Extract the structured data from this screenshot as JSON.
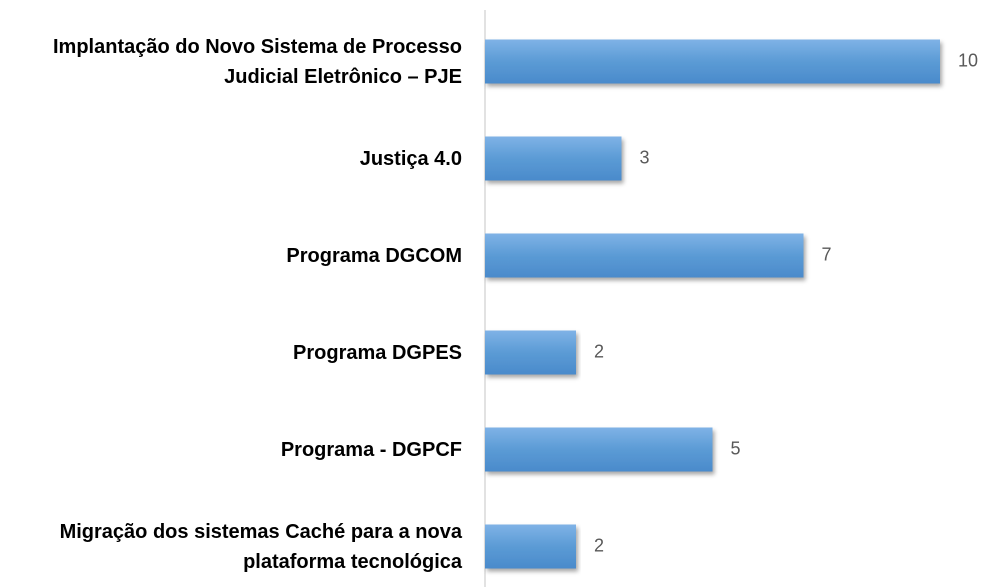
{
  "chart_data": {
    "type": "bar",
    "orientation": "horizontal",
    "categories": [
      "Implantação do Novo Sistema de Processo Judicial Eletrônico – PJE",
      "Justiça 4.0",
      "Programa DGCOM",
      "Programa DGPES",
      "Programa - DGPCF",
      "Migração dos sistemas Caché para a nova plataforma tecnológica"
    ],
    "values": [
      10,
      3,
      7,
      2,
      5,
      2
    ],
    "color": "#5b9bd5"
  }
}
